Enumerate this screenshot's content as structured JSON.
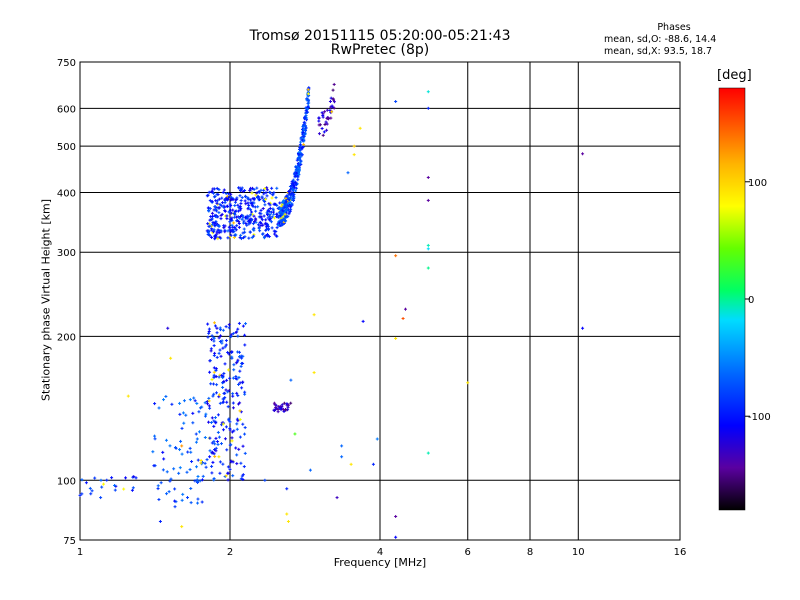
{
  "chart_data": {
    "type": "scatter",
    "title": "Tromsø 20151115 05:20:00-05:21:43",
    "subtitle": "RwPretec (8p)",
    "xlabel": "Frequency [MHz]",
    "ylabel": "Stationary phase Virtual Height [km]",
    "x_scale": "log",
    "y_scale": "log",
    "xlim": [
      1,
      16
    ],
    "ylim": [
      75,
      750
    ],
    "x_ticks": [
      1,
      2,
      4,
      6,
      8,
      10,
      16
    ],
    "y_ticks": [
      75,
      100,
      200,
      300,
      400,
      500,
      600,
      750
    ],
    "grid": true,
    "colorbar": {
      "label": "[deg]",
      "range": [
        -180,
        180
      ],
      "ticks": [
        100,
        0,
        -100
      ],
      "colors": [
        "#000000",
        "#5a00a0",
        "#0000ff",
        "#0064ff",
        "#00dcff",
        "#00ff64",
        "#64ff00",
        "#ffff00",
        "#ffb400",
        "#ff5000",
        "#ff0000"
      ]
    },
    "annotation": {
      "heading": "Phases",
      "line1": "mean, sd,O: -88.6, 14.4",
      "line2": "mean, sd,X:  93.5, 18.7"
    },
    "clusters": [
      {
        "f_range": [
          1.8,
          2.5
        ],
        "h_range": [
          320,
          410
        ],
        "phase": -110,
        "count": 420
      },
      {
        "f_range": [
          2.5,
          2.88
        ],
        "h_range": [
          360,
          650
        ],
        "phase": -100,
        "count": 360
      },
      {
        "f_range": [
          3.0,
          3.25
        ],
        "h_range": [
          550,
          650
        ],
        "phase": -140,
        "count": 40
      },
      {
        "f_range": [
          1.8,
          2.15
        ],
        "h_range": [
          100,
          215
        ],
        "phase": -110,
        "count": 240
      },
      {
        "f_range": [
          1.4,
          1.8
        ],
        "h_range": [
          85,
          150
        ],
        "phase": -100,
        "count": 90
      },
      {
        "f_range": [
          2.45,
          2.65
        ],
        "h_range": [
          139,
          145
        ],
        "phase": -140,
        "count": 35
      },
      {
        "f_range": [
          1.0,
          1.3
        ],
        "h_range": [
          93,
          103
        ],
        "phase": -105,
        "count": 22
      }
    ],
    "points": [
      {
        "x": 3.55,
        "y": 500,
        "phase": 120
      },
      {
        "x": 3.55,
        "y": 480,
        "phase": 110
      },
      {
        "x": 3.65,
        "y": 545,
        "phase": 110
      },
      {
        "x": 3.45,
        "y": 440,
        "phase": -90
      },
      {
        "x": 4.3,
        "y": 620,
        "phase": -100
      },
      {
        "x": 5.0,
        "y": 650,
        "phase": -30
      },
      {
        "x": 5.0,
        "y": 600,
        "phase": -110
      },
      {
        "x": 5.0,
        "y": 430,
        "phase": -150
      },
      {
        "x": 5.0,
        "y": 385,
        "phase": -150
      },
      {
        "x": 5.0,
        "y": 310,
        "phase": -20
      },
      {
        "x": 5.0,
        "y": 305,
        "phase": -40
      },
      {
        "x": 5.0,
        "y": 278,
        "phase": -10
      },
      {
        "x": 4.3,
        "y": 295,
        "phase": 150
      },
      {
        "x": 4.5,
        "y": 228,
        "phase": -150
      },
      {
        "x": 4.45,
        "y": 218,
        "phase": 160
      },
      {
        "x": 4.3,
        "y": 198,
        "phase": 110
      },
      {
        "x": 3.7,
        "y": 215,
        "phase": -120
      },
      {
        "x": 2.95,
        "y": 222,
        "phase": 110
      },
      {
        "x": 2.95,
        "y": 168,
        "phase": 110
      },
      {
        "x": 2.65,
        "y": 162,
        "phase": -90
      },
      {
        "x": 3.35,
        "y": 118,
        "phase": -90
      },
      {
        "x": 3.35,
        "y": 112,
        "phase": -90
      },
      {
        "x": 3.95,
        "y": 122,
        "phase": -80
      },
      {
        "x": 3.88,
        "y": 108,
        "phase": -110
      },
      {
        "x": 3.5,
        "y": 108,
        "phase": 110
      },
      {
        "x": 3.28,
        "y": 92,
        "phase": -140
      },
      {
        "x": 2.9,
        "y": 105,
        "phase": -90
      },
      {
        "x": 2.7,
        "y": 125,
        "phase": 30
      },
      {
        "x": 4.3,
        "y": 84,
        "phase": -150
      },
      {
        "x": 4.3,
        "y": 76,
        "phase": -120
      },
      {
        "x": 5.0,
        "y": 114,
        "phase": -20
      },
      {
        "x": 10.2,
        "y": 482,
        "phase": -150
      },
      {
        "x": 10.2,
        "y": 208,
        "phase": -120
      },
      {
        "x": 6.0,
        "y": 160,
        "phase": 110
      },
      {
        "x": 1.5,
        "y": 208,
        "phase": -130
      },
      {
        "x": 1.52,
        "y": 180,
        "phase": 110
      },
      {
        "x": 1.25,
        "y": 150,
        "phase": 110
      },
      {
        "x": 1.75,
        "y": 110,
        "phase": 110
      },
      {
        "x": 1.6,
        "y": 118,
        "phase": 140
      },
      {
        "x": 1.9,
        "y": 112,
        "phase": 110
      },
      {
        "x": 2.6,
        "y": 85,
        "phase": 110
      },
      {
        "x": 2.62,
        "y": 82,
        "phase": 110
      },
      {
        "x": 1.6,
        "y": 80,
        "phase": 110
      },
      {
        "x": 2.6,
        "y": 96,
        "phase": -110
      },
      {
        "x": 2.35,
        "y": 100,
        "phase": -100
      },
      {
        "x": 1.0,
        "y": 93,
        "phase": -110
      },
      {
        "x": 1.1,
        "y": 92,
        "phase": -100
      },
      {
        "x": 1.45,
        "y": 82,
        "phase": -110
      }
    ]
  }
}
